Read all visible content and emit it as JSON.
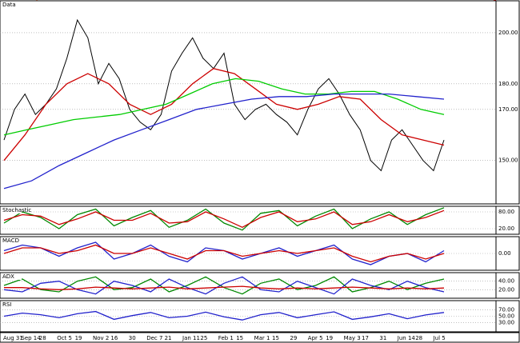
{
  "chart_data": [
    {
      "type": "line",
      "title": "Data",
      "ylim": [
        133,
        212.5
      ],
      "yticks": [
        {
          "value": 200,
          "label": "200.00"
        },
        {
          "value": 180,
          "label": "180.00"
        },
        {
          "value": 170,
          "label": "170.00"
        },
        {
          "value": 150,
          "label": "150.00"
        }
      ],
      "series": [
        {
          "color": "#000000",
          "values": [
            158,
            170,
            176,
            168,
            172,
            178,
            190,
            205,
            198,
            180,
            188,
            182,
            170,
            165,
            162,
            168,
            185,
            192,
            198,
            190,
            186,
            192,
            172,
            166,
            170,
            172,
            168,
            165,
            160,
            170,
            178,
            182,
            176,
            168,
            162,
            150,
            146,
            158,
            162,
            156,
            150,
            146,
            158
          ]
        },
        {
          "color": "#cc0000",
          "values": [
            150,
            160,
            172,
            180,
            184,
            180,
            172,
            168,
            172,
            180,
            186,
            184,
            178,
            172,
            170,
            172,
            175,
            174,
            166,
            160,
            158,
            156
          ]
        },
        {
          "color": "#00cc00",
          "values": [
            160,
            162,
            164,
            166,
            167,
            168,
            170,
            172,
            176,
            180,
            182,
            181,
            178,
            176,
            176,
            177,
            177,
            174,
            170,
            168
          ]
        },
        {
          "color": "#2222cc",
          "values": [
            139,
            142,
            148,
            153,
            158,
            162,
            166,
            170,
            172,
            174,
            175,
            175,
            176,
            176,
            176,
            175,
            174
          ]
        }
      ]
    },
    {
      "type": "line",
      "title": "Stochastic",
      "ylim": [
        0,
        100
      ],
      "yticks": [
        {
          "value": 80,
          "label": "80.00"
        },
        {
          "value": 20,
          "label": "20.00"
        }
      ],
      "series": [
        {
          "color": "#008800",
          "values": [
            40,
            80,
            60,
            20,
            70,
            90,
            30,
            60,
            85,
            25,
            50,
            90,
            40,
            15,
            75,
            85,
            30,
            65,
            90,
            20,
            55,
            80,
            35,
            70,
            95
          ]
        },
        {
          "color": "#cc0000",
          "values": [
            50,
            70,
            65,
            35,
            55,
            80,
            50,
            50,
            75,
            40,
            45,
            80,
            55,
            25,
            60,
            80,
            45,
            55,
            80,
            35,
            45,
            70,
            45,
            60,
            85
          ]
        }
      ]
    },
    {
      "type": "line",
      "title": "MACD",
      "ylim": [
        -6,
        6
      ],
      "yticks": [
        {
          "value": 0,
          "label": "0.00"
        }
      ],
      "series": [
        {
          "color": "#2222cc",
          "values": [
            1,
            3,
            2,
            -1,
            2,
            4,
            -2,
            0,
            3,
            -1,
            -3,
            2,
            1,
            -2,
            0,
            2,
            -1,
            1,
            3,
            -2,
            -4,
            -1,
            0,
            -3,
            1
          ]
        },
        {
          "color": "#cc0000",
          "values": [
            0,
            2,
            2,
            0,
            1,
            3,
            0,
            0,
            2,
            0,
            -2,
            1,
            1,
            -1,
            0,
            1,
            0,
            1,
            2,
            -1,
            -3,
            -1,
            0,
            -2,
            0
          ]
        }
      ]
    },
    {
      "type": "line",
      "title": "ADX",
      "ylim": [
        0,
        60
      ],
      "yticks": [
        {
          "value": 20,
          "label": "20.00"
        },
        {
          "value": 40,
          "label": "40.00"
        }
      ],
      "series": [
        {
          "color": "#008800",
          "values": [
            30,
            45,
            20,
            15,
            40,
            50,
            20,
            25,
            45,
            15,
            30,
            50,
            25,
            10,
            35,
            45,
            20,
            30,
            50,
            15,
            25,
            40,
            20,
            35,
            45
          ]
        },
        {
          "color": "#2222cc",
          "values": [
            20,
            15,
            35,
            40,
            20,
            10,
            40,
            30,
            15,
            45,
            25,
            10,
            35,
            50,
            20,
            15,
            40,
            25,
            10,
            45,
            30,
            20,
            40,
            25,
            15
          ]
        },
        {
          "color": "#cc0000",
          "values": [
            25,
            25,
            22,
            20,
            22,
            26,
            24,
            22,
            24,
            26,
            22,
            24,
            26,
            28,
            24,
            22,
            24,
            22,
            24,
            26,
            24,
            22,
            24,
            22,
            24
          ]
        }
      ]
    },
    {
      "type": "line",
      "title": "RSI",
      "ylim": [
        0,
        100
      ],
      "yticks": [
        {
          "value": 70,
          "label": "70.00"
        },
        {
          "value": 50,
          "label": "50.00"
        },
        {
          "value": 30,
          "label": "30.00"
        }
      ],
      "series": [
        {
          "color": "#2222cc",
          "values": [
            50,
            60,
            55,
            45,
            58,
            65,
            40,
            52,
            62,
            45,
            50,
            63,
            48,
            38,
            55,
            62,
            45,
            55,
            64,
            40,
            48,
            58,
            42,
            54,
            62
          ]
        }
      ]
    }
  ],
  "x_axis": {
    "labels": [
      "Aug 31",
      "Sep 14",
      "28",
      "Oct 5",
      "19",
      "Nov 2",
      "16",
      "30",
      "Dec 7",
      "21",
      "Jan 11",
      "25",
      "Feb 1",
      "15",
      "Mar 1",
      "15",
      "29",
      "Apr 5",
      "19",
      "May 3",
      "17",
      "31",
      "Jun 14",
      "28",
      "Jul 5"
    ]
  }
}
